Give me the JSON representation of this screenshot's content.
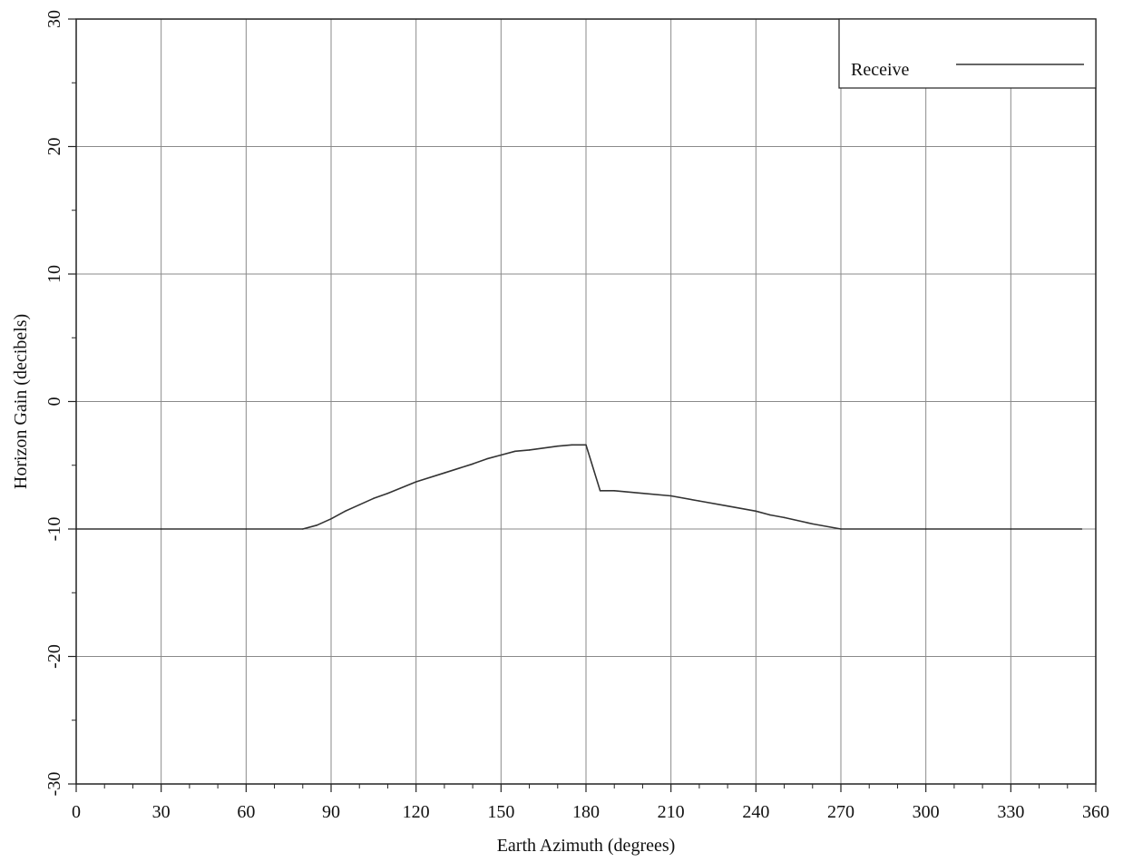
{
  "chart_data": {
    "type": "line",
    "xlabel": "Earth Azimuth (degrees)",
    "ylabel": "Horizon Gain (decibels)",
    "xlim": [
      0,
      360
    ],
    "ylim": [
      -30,
      30
    ],
    "x_ticks": [
      0,
      30,
      60,
      90,
      120,
      150,
      180,
      210,
      240,
      270,
      300,
      330,
      360
    ],
    "y_ticks": [
      -30,
      -20,
      -10,
      0,
      10,
      20,
      30
    ],
    "x_tick_labels": [
      "0",
      "30",
      "60",
      "90",
      "120",
      "150",
      "180",
      "210",
      "240",
      "270",
      "300",
      "330",
      "360"
    ],
    "y_tick_labels": [
      "-30",
      "-20",
      "-10",
      "0",
      "10",
      "20",
      "30"
    ],
    "grid": true,
    "legend_position": "top-right",
    "series": [
      {
        "name": "Receive",
        "color": "#333333",
        "x": [
          0,
          30,
          60,
          80,
          85,
          90,
          95,
          100,
          105,
          110,
          120,
          130,
          140,
          145,
          150,
          155,
          160,
          170,
          175,
          180,
          185,
          190,
          200,
          210,
          220,
          230,
          240,
          245,
          250,
          260,
          270,
          300,
          330,
          355
        ],
        "y": [
          -10,
          -10,
          -10,
          -10,
          -9.7,
          -9.2,
          -8.6,
          -8.1,
          -7.6,
          -7.2,
          -6.3,
          -5.6,
          -4.9,
          -4.5,
          -4.2,
          -3.9,
          -3.8,
          -3.5,
          -3.4,
          -3.4,
          -7.0,
          -7.0,
          -7.2,
          -7.4,
          -7.8,
          -8.2,
          -8.6,
          -8.9,
          -9.1,
          -9.6,
          -10,
          -10,
          -10,
          -10
        ]
      }
    ]
  }
}
